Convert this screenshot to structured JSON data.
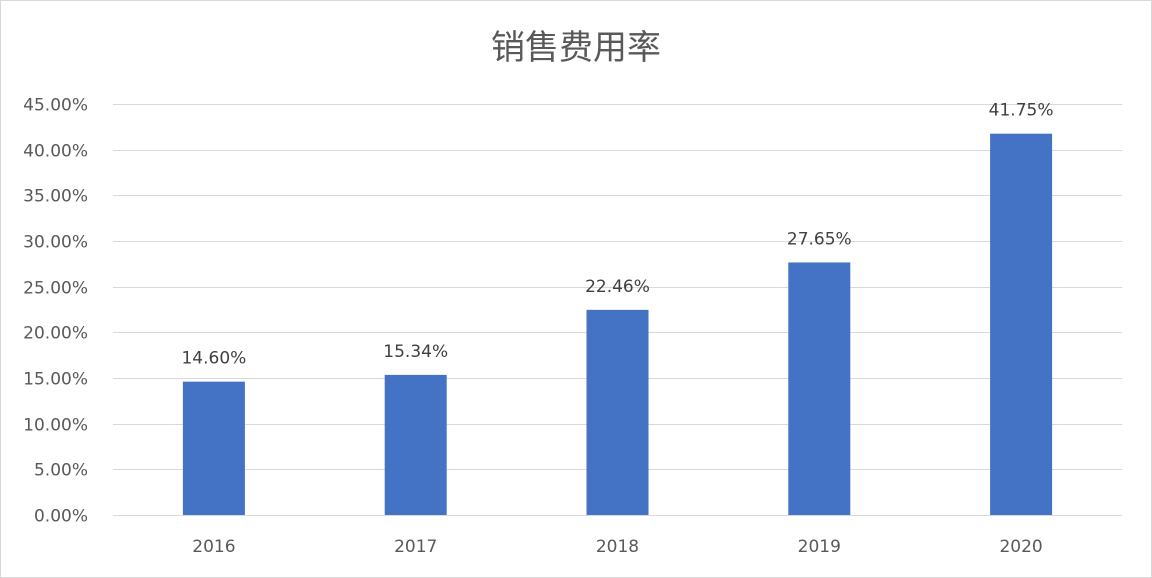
{
  "chart_data": {
    "type": "bar",
    "title": "销售费用率",
    "categories": [
      "2016",
      "2017",
      "2018",
      "2019",
      "2020"
    ],
    "values": [
      14.6,
      15.34,
      22.46,
      27.65,
      41.75
    ],
    "data_labels": [
      "14.60%",
      "15.34%",
      "22.46%",
      "27.65%",
      "41.75%"
    ],
    "y_ticks": [
      "0.00%",
      "5.00%",
      "10.00%",
      "15.00%",
      "20.00%",
      "25.00%",
      "30.00%",
      "35.00%",
      "40.00%",
      "45.00%"
    ],
    "ylim": [
      0,
      45
    ],
    "grid": true,
    "bar_color": "#4472C4",
    "grid_color": "#d9d9d9"
  }
}
